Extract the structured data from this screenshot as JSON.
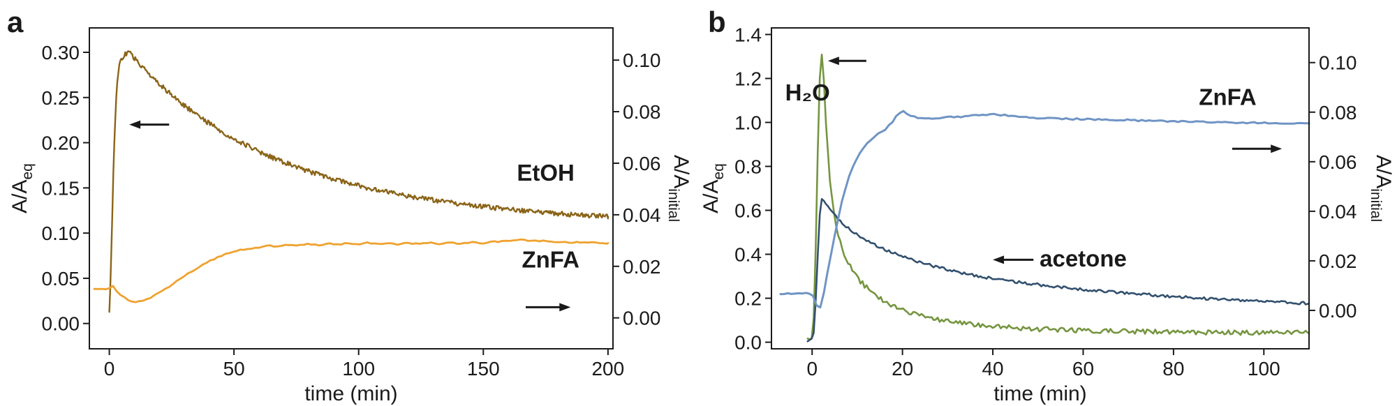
{
  "colors": {
    "ink": "#1a1a1a",
    "background": "#ffffff"
  },
  "chart_data": [
    {
      "type": "line",
      "panel_label": "a",
      "xlabel": "time (min)",
      "xlim": [
        -8,
        202
      ],
      "grid": false,
      "x_axis": {
        "ticks": [
          0,
          50,
          100,
          150,
          200
        ],
        "tick_labels": [
          "0",
          "50",
          "100",
          "150",
          "200"
        ]
      },
      "left_axis": {
        "label": "A/A",
        "label_sub": "eq",
        "lim": [
          -0.028,
          0.327
        ],
        "ticks": [
          0.0,
          0.05,
          0.1,
          0.15,
          0.2,
          0.25,
          0.3
        ],
        "tick_labels": [
          "0.00",
          "0.05",
          "0.10",
          "0.15",
          "0.20",
          "0.25",
          "0.30"
        ]
      },
      "right_axis": {
        "label": "A/A",
        "label_sub": "initial",
        "lim": [
          -0.012,
          0.1125
        ],
        "ticks": [
          0.0,
          0.02,
          0.04,
          0.06,
          0.08,
          0.1
        ],
        "tick_labels": [
          "0.00",
          "0.02",
          "0.04",
          "0.06",
          "0.08",
          "0.10"
        ]
      },
      "series": [
        {
          "name": "EtOH",
          "axis": "left",
          "color": "#8a6418",
          "width": 2.4,
          "noise": 0.0026,
          "step": 0.4,
          "x": [
            0,
            0.5,
            1,
            1.5,
            2,
            2.5,
            3,
            3.5,
            4,
            5,
            6,
            7,
            8,
            10,
            12,
            14,
            16,
            18,
            20,
            23,
            26,
            30,
            34,
            38,
            42,
            46,
            50,
            55,
            60,
            65,
            70,
            75,
            80,
            85,
            90,
            95,
            100,
            105,
            110,
            115,
            120,
            125,
            130,
            135,
            140,
            145,
            150,
            155,
            160,
            165,
            170,
            175,
            180,
            185,
            190,
            195,
            200
          ],
          "y": [
            0.012,
            0.05,
            0.1,
            0.155,
            0.2,
            0.235,
            0.26,
            0.2755,
            0.285,
            0.293,
            0.297,
            0.299,
            0.3,
            0.2937,
            0.2876,
            0.2817,
            0.276,
            0.2706,
            0.2653,
            0.2577,
            0.2505,
            0.2414,
            0.233,
            0.2251,
            0.2177,
            0.2109,
            0.2045,
            0.1971,
            0.1903,
            0.1841,
            0.1784,
            0.1731,
            0.1683,
            0.1638,
            0.1597,
            0.1559,
            0.1524,
            0.1492,
            0.1462,
            0.1435,
            0.1409,
            0.1386,
            0.1364,
            0.1343,
            0.1325,
            0.1307,
            0.1291,
            0.1276,
            0.1262,
            0.125,
            0.1238,
            0.1227,
            0.1217,
            0.1207,
            0.1199,
            0.1191,
            0.1183
          ]
        },
        {
          "name": "ZnFA",
          "axis": "right",
          "color": "#efa22f",
          "width": 2.8,
          "noise": 0.00025,
          "step": 1.5,
          "x": [
            -6,
            -3,
            0,
            1,
            3,
            5,
            8,
            10,
            12,
            15,
            18,
            21,
            24,
            27,
            30,
            33,
            36,
            40,
            44,
            48,
            52,
            56,
            60,
            64,
            68,
            72,
            76,
            80,
            84,
            88,
            92,
            96,
            100,
            104,
            108,
            112,
            116,
            120,
            124,
            128,
            132,
            136,
            140,
            145,
            150,
            155,
            160,
            165,
            170,
            175,
            180,
            185,
            190,
            195,
            200
          ],
          "y": [
            0.0113,
            0.0111,
            0.0114,
            0.0128,
            0.0102,
            0.0085,
            0.0066,
            0.006,
            0.0063,
            0.0072,
            0.0086,
            0.0103,
            0.0122,
            0.0143,
            0.0163,
            0.0181,
            0.0198,
            0.0219,
            0.0237,
            0.0252,
            0.0262,
            0.0269,
            0.0274,
            0.028,
            0.0277,
            0.0284,
            0.028,
            0.0287,
            0.0282,
            0.0289,
            0.0284,
            0.0291,
            0.0285,
            0.0292,
            0.0286,
            0.029,
            0.0284,
            0.0291,
            0.0286,
            0.0293,
            0.0287,
            0.0292,
            0.0288,
            0.0294,
            0.029,
            0.0296,
            0.0299,
            0.0302,
            0.03,
            0.0297,
            0.0295,
            0.0293,
            0.0292,
            0.0291,
            0.029
          ]
        }
      ],
      "labels": [
        {
          "id": "etoh-label",
          "text": "EtOH",
          "x": 175,
          "y": 0.158,
          "axis": "left",
          "color": "#8a6418"
        },
        {
          "id": "znfa-label",
          "text": "ZnFA",
          "x": 177,
          "y": 0.062,
          "axis": "left",
          "color": "#efa22f"
        }
      ],
      "arrows": [
        {
          "x_tail": 24,
          "x_tip": 8,
          "y": 0.22,
          "axis": "left"
        },
        {
          "x_tail": 167,
          "x_tip": 185,
          "y": 0.018,
          "axis": "left"
        }
      ]
    },
    {
      "type": "line",
      "panel_label": "b",
      "xlabel": "time (min)",
      "xlim": [
        -9,
        110
      ],
      "grid": false,
      "x_axis": {
        "ticks": [
          0,
          20,
          40,
          60,
          80,
          100
        ],
        "tick_labels": [
          "0",
          "20",
          "40",
          "60",
          "80",
          "100"
        ]
      },
      "left_axis": {
        "label": "A/A",
        "label_sub": "eq",
        "lim": [
          -0.03,
          1.43
        ],
        "ticks": [
          0.0,
          0.2,
          0.4,
          0.6,
          0.8,
          1.0,
          1.2,
          1.4
        ],
        "tick_labels": [
          "0.0",
          "0.2",
          "0.4",
          "0.6",
          "0.8",
          "1.0",
          "1.2",
          "1.4"
        ]
      },
      "right_axis": {
        "label": "A/A",
        "label_sub": "initial",
        "lim": [
          -0.0155,
          0.114
        ],
        "ticks": [
          0.0,
          0.02,
          0.04,
          0.06,
          0.08,
          0.1
        ],
        "tick_labels": [
          "0.00",
          "0.02",
          "0.04",
          "0.06",
          "0.08",
          "0.10"
        ]
      },
      "series": [
        {
          "name": "H2O",
          "axis": "left",
          "color": "#75953f",
          "width": 2.6,
          "noise": 0.011,
          "step": 0.45,
          "x": [
            -1,
            0,
            0.5,
            1,
            1.5,
            2,
            2.5,
            3,
            3.5,
            4,
            4.5,
            5,
            6,
            7,
            8,
            9,
            10,
            11,
            12,
            14,
            16,
            18,
            20,
            22,
            25,
            28,
            31,
            34,
            37,
            40,
            44,
            48,
            52,
            56,
            60,
            64,
            68,
            72,
            76,
            80,
            84,
            88,
            92,
            96,
            100,
            104,
            108,
            110
          ],
          "y": [
            0.012,
            0.02,
            0.15,
            0.62,
            1.12,
            1.33,
            1.24,
            1.02,
            0.86,
            0.73,
            0.64,
            0.565,
            0.47,
            0.405,
            0.36,
            0.325,
            0.295,
            0.27,
            0.25,
            0.215,
            0.188,
            0.165,
            0.148,
            0.133,
            0.116,
            0.103,
            0.093,
            0.084,
            0.077,
            0.072,
            0.066,
            0.061,
            0.058,
            0.055,
            0.053,
            0.051,
            0.049,
            0.048,
            0.047,
            0.046,
            0.046,
            0.045,
            0.045,
            0.044,
            0.044,
            0.043,
            0.043,
            0.042
          ]
        },
        {
          "name": "acetone",
          "axis": "left",
          "color": "#32506e",
          "width": 2.6,
          "noise": 0.0065,
          "step": 0.45,
          "x": [
            -1,
            0,
            0.5,
            1,
            1.5,
            2,
            2.5,
            3,
            4,
            5,
            6,
            7,
            8,
            9,
            10,
            12,
            14,
            16,
            18,
            20,
            23,
            26,
            29,
            32,
            35,
            38,
            42,
            46,
            50,
            54,
            58,
            62,
            66,
            70,
            75,
            80,
            85,
            90,
            95,
            100,
            105,
            110
          ],
          "y": [
            0.005,
            0.01,
            0.06,
            0.28,
            0.52,
            0.655,
            0.648,
            0.632,
            0.603,
            0.578,
            0.556,
            0.537,
            0.52,
            0.504,
            0.49,
            0.464,
            0.442,
            0.422,
            0.405,
            0.39,
            0.369,
            0.351,
            0.335,
            0.321,
            0.308,
            0.297,
            0.284,
            0.272,
            0.262,
            0.252,
            0.244,
            0.236,
            0.229,
            0.222,
            0.215,
            0.208,
            0.202,
            0.196,
            0.191,
            0.186,
            0.181,
            0.177
          ]
        },
        {
          "name": "ZnFA",
          "axis": "right",
          "color": "#6f94c4",
          "width": 3,
          "noise": 0.0003,
          "step": 0.8,
          "x": [
            -7,
            -5,
            -3,
            -1,
            0,
            0.5,
            1,
            1.5,
            2,
            2.5,
            3,
            4,
            5,
            6,
            7,
            8,
            9,
            10,
            11,
            12,
            13,
            14,
            15,
            16,
            17,
            18,
            19,
            20,
            22,
            24,
            26,
            28,
            30,
            33,
            36,
            40,
            44,
            48,
            52,
            56,
            60,
            65,
            70,
            75,
            80,
            85,
            90,
            95,
            100,
            105,
            110
          ],
          "y": [
            0.0068,
            0.0069,
            0.0067,
            0.0068,
            0.0065,
            0.005,
            0.002,
            0.0005,
            0.002,
            0.006,
            0.011,
            0.021,
            0.03,
            0.039,
            0.047,
            0.053,
            0.058,
            0.0615,
            0.0645,
            0.067,
            0.069,
            0.0705,
            0.0715,
            0.0725,
            0.0745,
            0.0765,
            0.0795,
            0.0805,
            0.0785,
            0.0775,
            0.0775,
            0.0778,
            0.078,
            0.0782,
            0.0788,
            0.0792,
            0.0785,
            0.0778,
            0.0775,
            0.0773,
            0.0772,
            0.077,
            0.0768,
            0.0765,
            0.0763,
            0.0762,
            0.076,
            0.0758,
            0.0757,
            0.0755,
            0.0755
          ]
        }
      ],
      "labels": [
        {
          "id": "h2o-label",
          "text": "H₂O",
          "x": -1,
          "y": 1.1,
          "axis": "left",
          "color": "#75953f"
        },
        {
          "id": "znfa-label",
          "text": "ZnFA",
          "x": 92,
          "y": 1.08,
          "axis": "left",
          "color": "#6f94c4"
        },
        {
          "id": "acetone-label",
          "text": "acetone",
          "x": 60,
          "y": 0.345,
          "axis": "left",
          "color": "#32506e"
        }
      ],
      "arrows": [
        {
          "x_tail": 12,
          "x_tip": 3.5,
          "y": 1.28,
          "axis": "left"
        },
        {
          "x_tail": 49,
          "x_tip": 40,
          "y": 0.375,
          "axis": "left"
        },
        {
          "x_tail": 93,
          "x_tip": 104,
          "y": 0.88,
          "axis": "left"
        }
      ]
    }
  ]
}
